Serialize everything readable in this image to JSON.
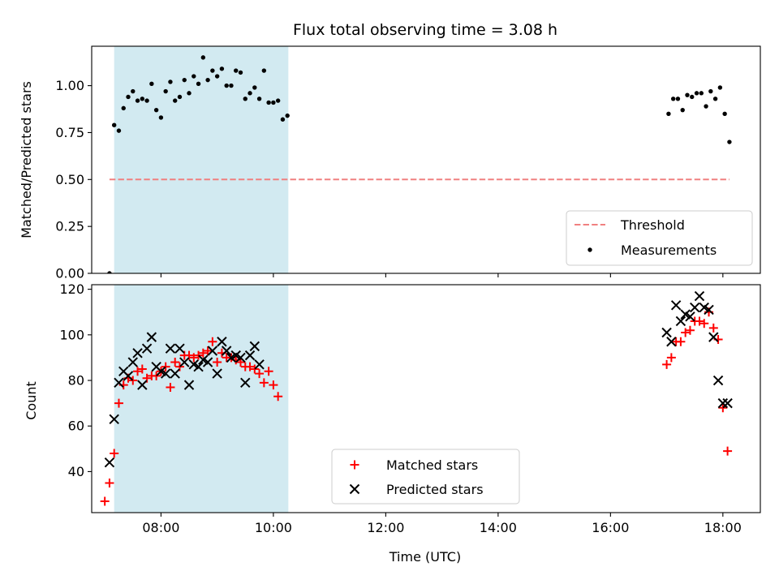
{
  "chart_data": [
    {
      "type": "scatter",
      "title": "Flux total observing time = 3.08 h",
      "xlabel": "",
      "ylabel": "Matched/Predicted stars",
      "x_range": [
        "06:46",
        "18:40"
      ],
      "ylim": [
        0,
        1.21
      ],
      "yticks": [
        "0.00",
        "0.25",
        "0.50",
        "0.75",
        "1.00"
      ],
      "ytick_values": [
        0,
        0.25,
        0.5,
        0.75,
        1.0
      ],
      "xticks": [
        "08:00",
        "10:00",
        "12:00",
        "14:00",
        "16:00",
        "18:00"
      ],
      "xtick_labels_visible": false,
      "shaded_region": {
        "start": "07:10",
        "end": "10:16",
        "color": "#add8e6"
      },
      "threshold": {
        "name": "Threshold",
        "value": 0.5,
        "x_start": "07:05",
        "x_end": "18:07",
        "color": "#f08080",
        "style": "dashed"
      },
      "series": [
        {
          "name": "Measurements",
          "color": "#000000",
          "marker": "dot",
          "points": [
            [
              "07:05",
              0.0
            ],
            [
              "07:10",
              0.79
            ],
            [
              "07:15",
              0.76
            ],
            [
              "07:20",
              0.88
            ],
            [
              "07:25",
              0.94
            ],
            [
              "07:30",
              0.97
            ],
            [
              "07:35",
              0.92
            ],
            [
              "07:40",
              0.93
            ],
            [
              "07:45",
              0.92
            ],
            [
              "07:50",
              1.01
            ],
            [
              "07:55",
              0.87
            ],
            [
              "08:00",
              0.83
            ],
            [
              "08:05",
              0.97
            ],
            [
              "08:10",
              1.02
            ],
            [
              "08:15",
              0.92
            ],
            [
              "08:20",
              0.94
            ],
            [
              "08:25",
              1.03
            ],
            [
              "08:30",
              0.96
            ],
            [
              "08:35",
              1.05
            ],
            [
              "08:40",
              1.01
            ],
            [
              "08:45",
              1.15
            ],
            [
              "08:50",
              1.03
            ],
            [
              "08:55",
              1.08
            ],
            [
              "09:00",
              1.05
            ],
            [
              "09:05",
              1.09
            ],
            [
              "09:10",
              1.0
            ],
            [
              "09:15",
              1.0
            ],
            [
              "09:20",
              1.08
            ],
            [
              "09:25",
              1.07
            ],
            [
              "09:30",
              0.93
            ],
            [
              "09:35",
              0.96
            ],
            [
              "09:40",
              0.99
            ],
            [
              "09:45",
              0.93
            ],
            [
              "09:50",
              1.08
            ],
            [
              "09:55",
              0.91
            ],
            [
              "10:00",
              0.91
            ],
            [
              "10:05",
              0.92
            ],
            [
              "10:10",
              0.82
            ],
            [
              "10:15",
              0.84
            ],
            [
              "17:02",
              0.85
            ],
            [
              "17:07",
              0.93
            ],
            [
              "17:12",
              0.93
            ],
            [
              "17:17",
              0.87
            ],
            [
              "17:22",
              0.95
            ],
            [
              "17:27",
              0.94
            ],
            [
              "17:32",
              0.96
            ],
            [
              "17:37",
              0.96
            ],
            [
              "17:42",
              0.89
            ],
            [
              "17:47",
              0.97
            ],
            [
              "17:52",
              0.93
            ],
            [
              "17:57",
              0.99
            ],
            [
              "18:02",
              0.85
            ],
            [
              "18:07",
              0.7
            ]
          ]
        }
      ],
      "legend": {
        "placement": "lower right",
        "entries": [
          "Threshold",
          "Measurements"
        ]
      }
    },
    {
      "type": "scatter",
      "title": "",
      "xlabel": "Time (UTC)",
      "ylabel": "Count",
      "x_range": [
        "06:46",
        "18:40"
      ],
      "ylim": [
        22,
        122
      ],
      "yticks": [
        "40",
        "60",
        "80",
        "100",
        "120"
      ],
      "ytick_values": [
        40,
        60,
        80,
        100,
        120
      ],
      "xticks": [
        "08:00",
        "10:00",
        "12:00",
        "14:00",
        "16:00",
        "18:00"
      ],
      "shaded_region": {
        "start": "07:10",
        "end": "10:16",
        "color": "#add8e6"
      },
      "series": [
        {
          "name": "Matched stars",
          "color": "#ff0000",
          "marker": "plus",
          "points": [
            [
              "07:00",
              27
            ],
            [
              "07:05",
              35
            ],
            [
              "07:10",
              48
            ],
            [
              "07:15",
              70
            ],
            [
              "07:20",
              78
            ],
            [
              "07:25",
              81
            ],
            [
              "07:30",
              80
            ],
            [
              "07:35",
              84
            ],
            [
              "07:40",
              85
            ],
            [
              "07:45",
              81
            ],
            [
              "07:50",
              82
            ],
            [
              "07:55",
              82
            ],
            [
              "08:00",
              84
            ],
            [
              "08:05",
              86
            ],
            [
              "08:10",
              77
            ],
            [
              "08:15",
              88
            ],
            [
              "08:20",
              86
            ],
            [
              "08:25",
              91
            ],
            [
              "08:30",
              91
            ],
            [
              "08:35",
              90
            ],
            [
              "08:40",
              91
            ],
            [
              "08:45",
              92
            ],
            [
              "08:50",
              93
            ],
            [
              "08:55",
              97
            ],
            [
              "09:00",
              88
            ],
            [
              "09:05",
              92
            ],
            [
              "09:10",
              90
            ],
            [
              "09:15",
              90
            ],
            [
              "09:20",
              89
            ],
            [
              "09:25",
              88
            ],
            [
              "09:30",
              86
            ],
            [
              "09:35",
              86
            ],
            [
              "09:40",
              85
            ],
            [
              "09:45",
              83
            ],
            [
              "09:50",
              79
            ],
            [
              "09:55",
              84
            ],
            [
              "10:00",
              78
            ],
            [
              "10:05",
              73
            ],
            [
              "17:00",
              87
            ],
            [
              "17:05",
              90
            ],
            [
              "17:10",
              97
            ],
            [
              "17:15",
              97
            ],
            [
              "17:20",
              101
            ],
            [
              "17:25",
              102
            ],
            [
              "17:30",
              106
            ],
            [
              "17:35",
              106
            ],
            [
              "17:40",
              105
            ],
            [
              "17:45",
              110
            ],
            [
              "17:50",
              103
            ],
            [
              "17:55",
              98
            ],
            [
              "18:00",
              68
            ],
            [
              "18:05",
              49
            ]
          ]
        },
        {
          "name": "Predicted stars",
          "color": "#000000",
          "marker": "x",
          "points": [
            [
              "07:05",
              44
            ],
            [
              "07:10",
              63
            ],
            [
              "07:15",
              79
            ],
            [
              "07:20",
              84
            ],
            [
              "07:25",
              82
            ],
            [
              "07:30",
              88
            ],
            [
              "07:35",
              92
            ],
            [
              "07:40",
              78
            ],
            [
              "07:45",
              94
            ],
            [
              "07:50",
              99
            ],
            [
              "07:55",
              86
            ],
            [
              "08:00",
              84
            ],
            [
              "08:05",
              83
            ],
            [
              "08:10",
              94
            ],
            [
              "08:15",
              83
            ],
            [
              "08:20",
              94
            ],
            [
              "08:25",
              88
            ],
            [
              "08:30",
              78
            ],
            [
              "08:35",
              87
            ],
            [
              "08:40",
              86
            ],
            [
              "08:45",
              89
            ],
            [
              "08:50",
              88
            ],
            [
              "08:55",
              93
            ],
            [
              "09:00",
              83
            ],
            [
              "09:05",
              97
            ],
            [
              "09:10",
              93
            ],
            [
              "09:15",
              90
            ],
            [
              "09:20",
              91
            ],
            [
              "09:25",
              90
            ],
            [
              "09:30",
              79
            ],
            [
              "09:35",
              91
            ],
            [
              "09:40",
              95
            ],
            [
              "09:45",
              87
            ],
            [
              "17:00",
              101
            ],
            [
              "17:05",
              97
            ],
            [
              "17:10",
              113
            ],
            [
              "17:15",
              106
            ],
            [
              "17:20",
              109
            ],
            [
              "17:25",
              108
            ],
            [
              "17:30",
              112
            ],
            [
              "17:35",
              117
            ],
            [
              "17:40",
              112
            ],
            [
              "17:45",
              111
            ],
            [
              "17:50",
              99
            ],
            [
              "17:55",
              80
            ],
            [
              "18:00",
              70
            ],
            [
              "18:05",
              70
            ]
          ]
        }
      ],
      "legend": {
        "placement": "lower center",
        "entries": [
          "Matched stars",
          "Predicted stars"
        ]
      }
    }
  ]
}
